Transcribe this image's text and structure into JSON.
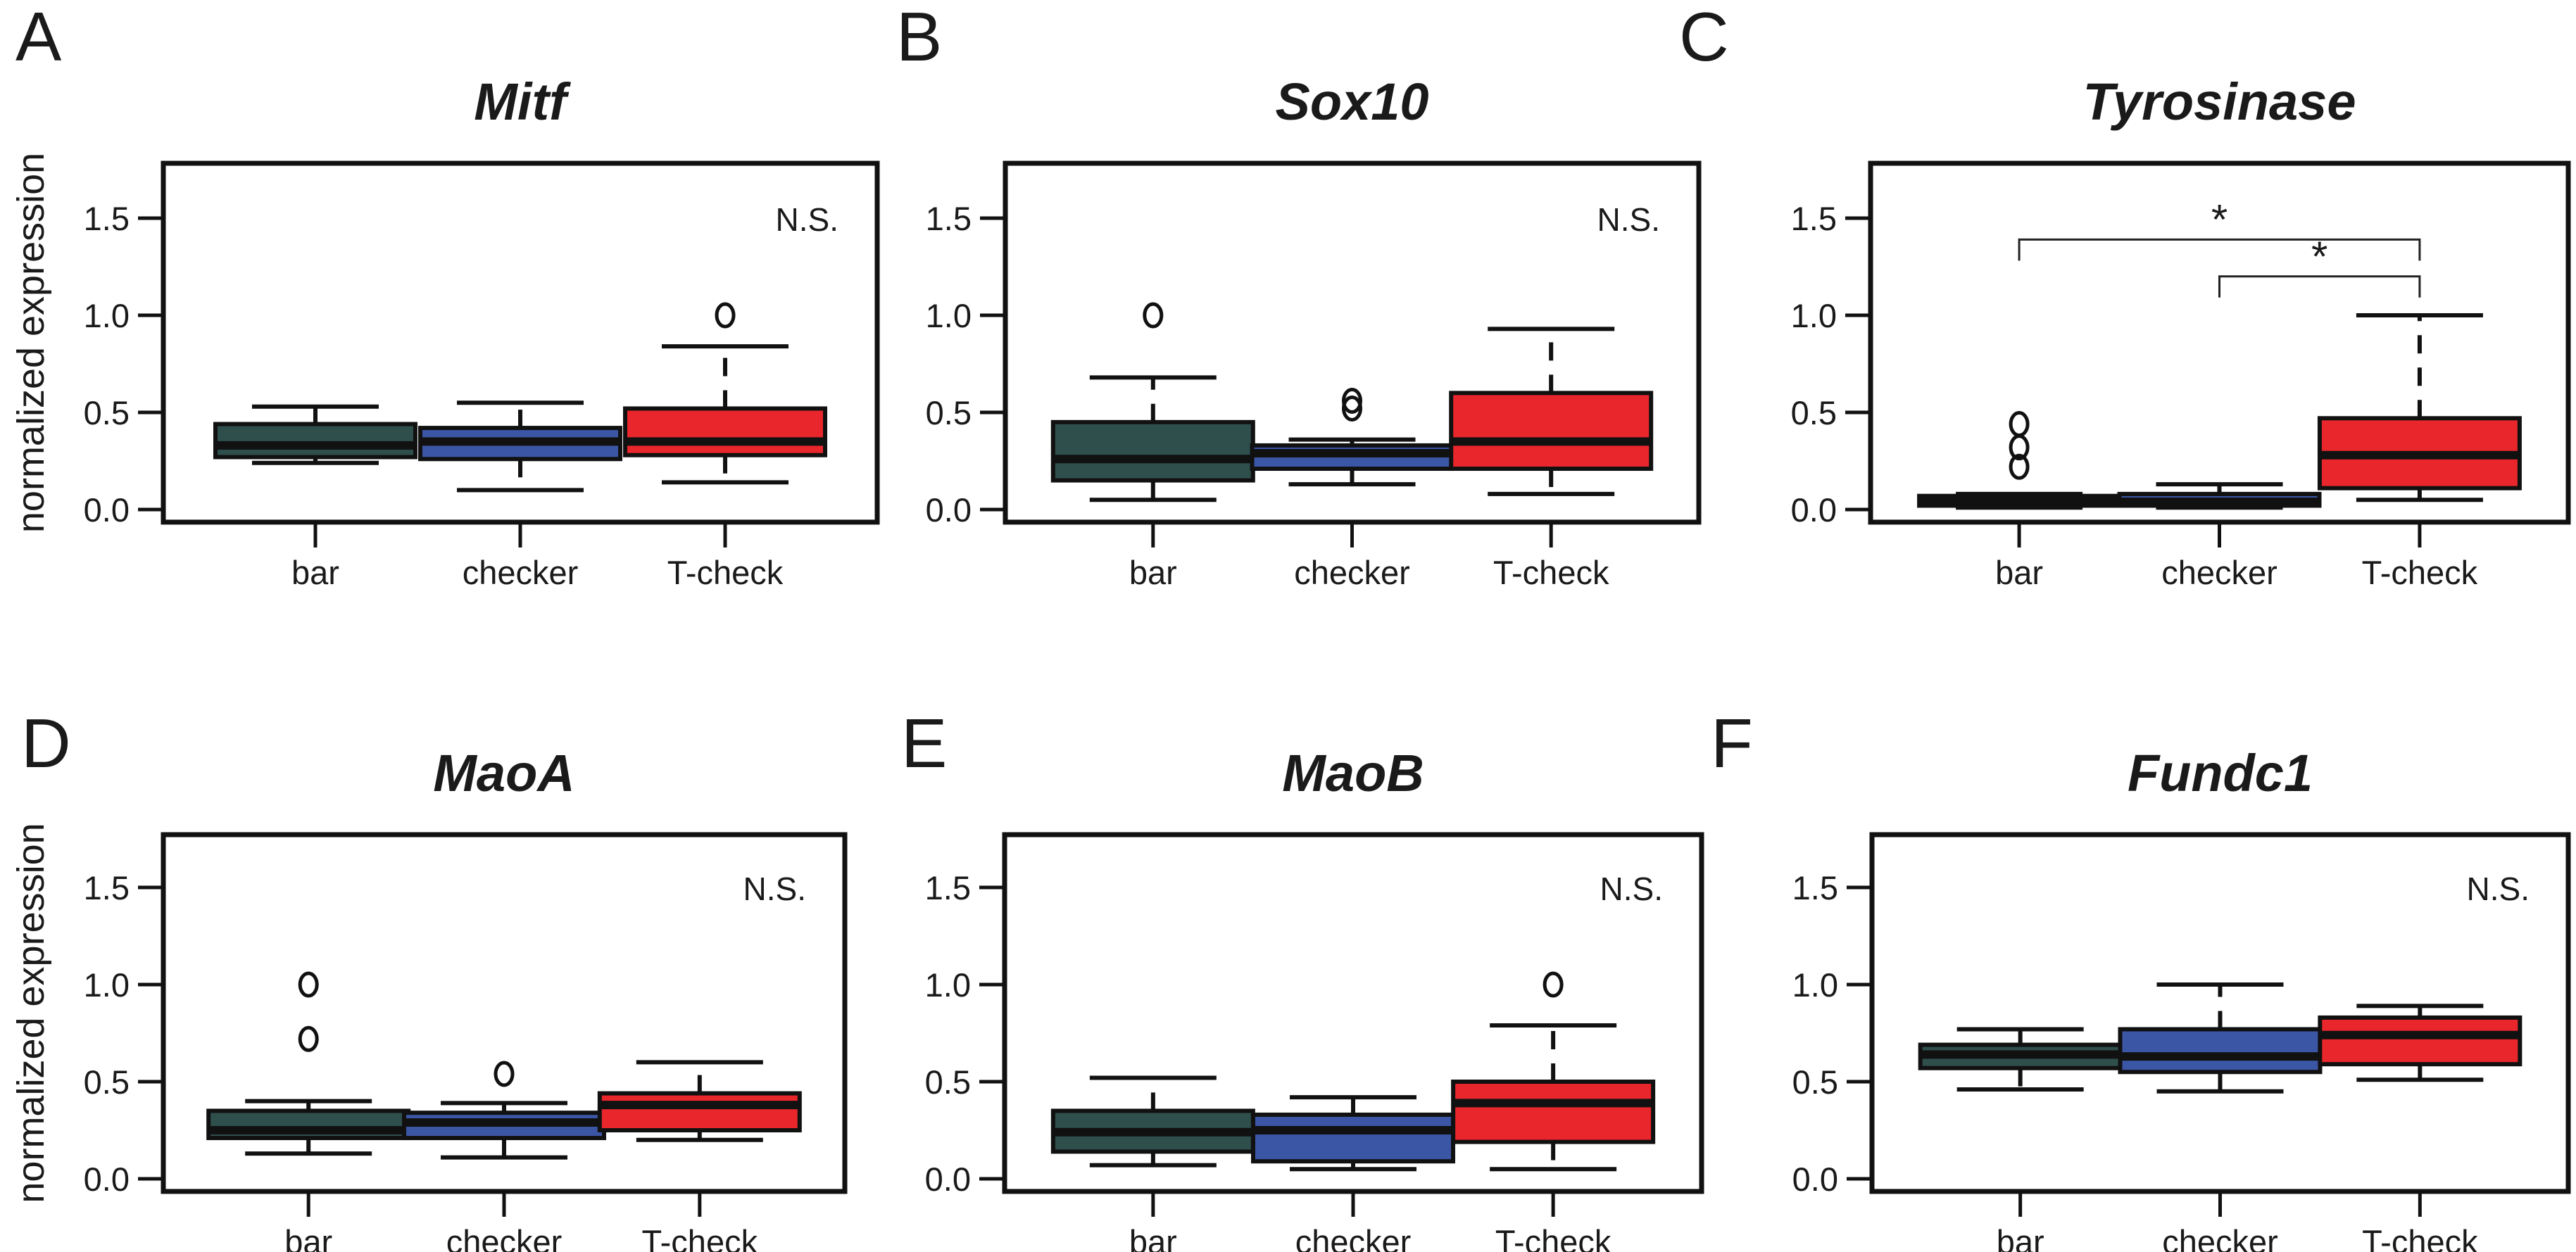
{
  "chart_data": {
    "type": "boxplot",
    "layout": "2x3 grid",
    "ylabel": "normalized expression",
    "categories": [
      "bar",
      "checker",
      "T-check"
    ],
    "colors": {
      "bar": "#2f4f4d",
      "checker": "#3c56a6",
      "T-check": "#e8262b"
    },
    "ylim": [
      -0.065,
      1.765
    ],
    "yticks": [
      0.0,
      0.5,
      1.0,
      1.5
    ],
    "ytick_labels": [
      "0.0",
      "0.5",
      "1.0",
      "1.5"
    ],
    "grid": false,
    "panels": [
      {
        "letter": "A",
        "title": "Mitf",
        "annotation": "N.S.",
        "show_ylabel": true,
        "boxes": [
          {
            "category": "bar",
            "whisker_low": 0.24,
            "q1": 0.27,
            "median": 0.33,
            "q3": 0.44,
            "whisker_high": 0.53,
            "outliers": []
          },
          {
            "category": "checker",
            "whisker_low": 0.1,
            "q1": 0.26,
            "median": 0.35,
            "q3": 0.42,
            "whisker_high": 0.55,
            "outliers": []
          },
          {
            "category": "T-check",
            "whisker_low": 0.14,
            "q1": 0.28,
            "median": 0.35,
            "q3": 0.52,
            "whisker_high": 0.84,
            "outliers": [
              1.0
            ]
          }
        ],
        "brackets": []
      },
      {
        "letter": "B",
        "title": "Sox10",
        "annotation": "N.S.",
        "show_ylabel": false,
        "boxes": [
          {
            "category": "bar",
            "whisker_low": 0.05,
            "q1": 0.15,
            "median": 0.26,
            "q3": 0.45,
            "whisker_high": 0.68,
            "outliers": [
              1.0
            ]
          },
          {
            "category": "checker",
            "whisker_low": 0.13,
            "q1": 0.21,
            "median": 0.29,
            "q3": 0.33,
            "whisker_high": 0.36,
            "outliers": [
              0.52,
              0.56
            ]
          },
          {
            "category": "T-check",
            "whisker_low": 0.08,
            "q1": 0.21,
            "median": 0.35,
            "q3": 0.6,
            "whisker_high": 0.93,
            "outliers": []
          }
        ],
        "brackets": []
      },
      {
        "letter": "C",
        "title": "Tyrosinase",
        "annotation": "",
        "show_ylabel": false,
        "boxes": [
          {
            "category": "bar",
            "whisker_low": 0.01,
            "q1": 0.02,
            "median": 0.05,
            "q3": 0.07,
            "whisker_high": 0.08,
            "outliers": [
              0.22,
              0.32,
              0.44
            ]
          },
          {
            "category": "checker",
            "whisker_low": 0.01,
            "q1": 0.02,
            "median": 0.04,
            "q3": 0.08,
            "whisker_high": 0.13,
            "outliers": []
          },
          {
            "category": "T-check",
            "whisker_low": 0.05,
            "q1": 0.11,
            "median": 0.28,
            "q3": 0.47,
            "whisker_high": 1.0,
            "outliers": []
          }
        ],
        "brackets": [
          {
            "from": "bar",
            "to": "T-check",
            "y": 1.39,
            "label": "*"
          },
          {
            "from": "checker",
            "to": "T-check",
            "y": 1.2,
            "label": "*"
          }
        ]
      },
      {
        "letter": "D",
        "title": "MaoA",
        "annotation": "N.S.",
        "show_ylabel": true,
        "boxes": [
          {
            "category": "bar",
            "whisker_low": 0.13,
            "q1": 0.21,
            "median": 0.25,
            "q3": 0.35,
            "whisker_high": 0.4,
            "outliers": [
              0.72,
              1.0
            ]
          },
          {
            "category": "checker",
            "whisker_low": 0.11,
            "q1": 0.21,
            "median": 0.29,
            "q3": 0.34,
            "whisker_high": 0.39,
            "outliers": [
              0.54
            ]
          },
          {
            "category": "T-check",
            "whisker_low": 0.2,
            "q1": 0.25,
            "median": 0.38,
            "q3": 0.44,
            "whisker_high": 0.6,
            "outliers": []
          }
        ],
        "brackets": []
      },
      {
        "letter": "E",
        "title": "MaoB",
        "annotation": "N.S.",
        "show_ylabel": false,
        "boxes": [
          {
            "category": "bar",
            "whisker_low": 0.07,
            "q1": 0.14,
            "median": 0.24,
            "q3": 0.35,
            "whisker_high": 0.52,
            "outliers": []
          },
          {
            "category": "checker",
            "whisker_low": 0.05,
            "q1": 0.09,
            "median": 0.25,
            "q3": 0.33,
            "whisker_high": 0.42,
            "outliers": []
          },
          {
            "category": "T-check",
            "whisker_low": 0.05,
            "q1": 0.19,
            "median": 0.39,
            "q3": 0.5,
            "whisker_high": 0.79,
            "outliers": [
              1.0
            ]
          }
        ],
        "brackets": []
      },
      {
        "letter": "F",
        "title": "Fundc1",
        "annotation": "N.S.",
        "show_ylabel": false,
        "boxes": [
          {
            "category": "bar",
            "whisker_low": 0.46,
            "q1": 0.57,
            "median": 0.64,
            "q3": 0.69,
            "whisker_high": 0.77,
            "outliers": []
          },
          {
            "category": "checker",
            "whisker_low": 0.45,
            "q1": 0.55,
            "median": 0.63,
            "q3": 0.77,
            "whisker_high": 1.0,
            "outliers": []
          },
          {
            "category": "T-check",
            "whisker_low": 0.51,
            "q1": 0.59,
            "median": 0.74,
            "q3": 0.83,
            "whisker_high": 0.89,
            "outliers": []
          }
        ],
        "brackets": []
      }
    ]
  }
}
